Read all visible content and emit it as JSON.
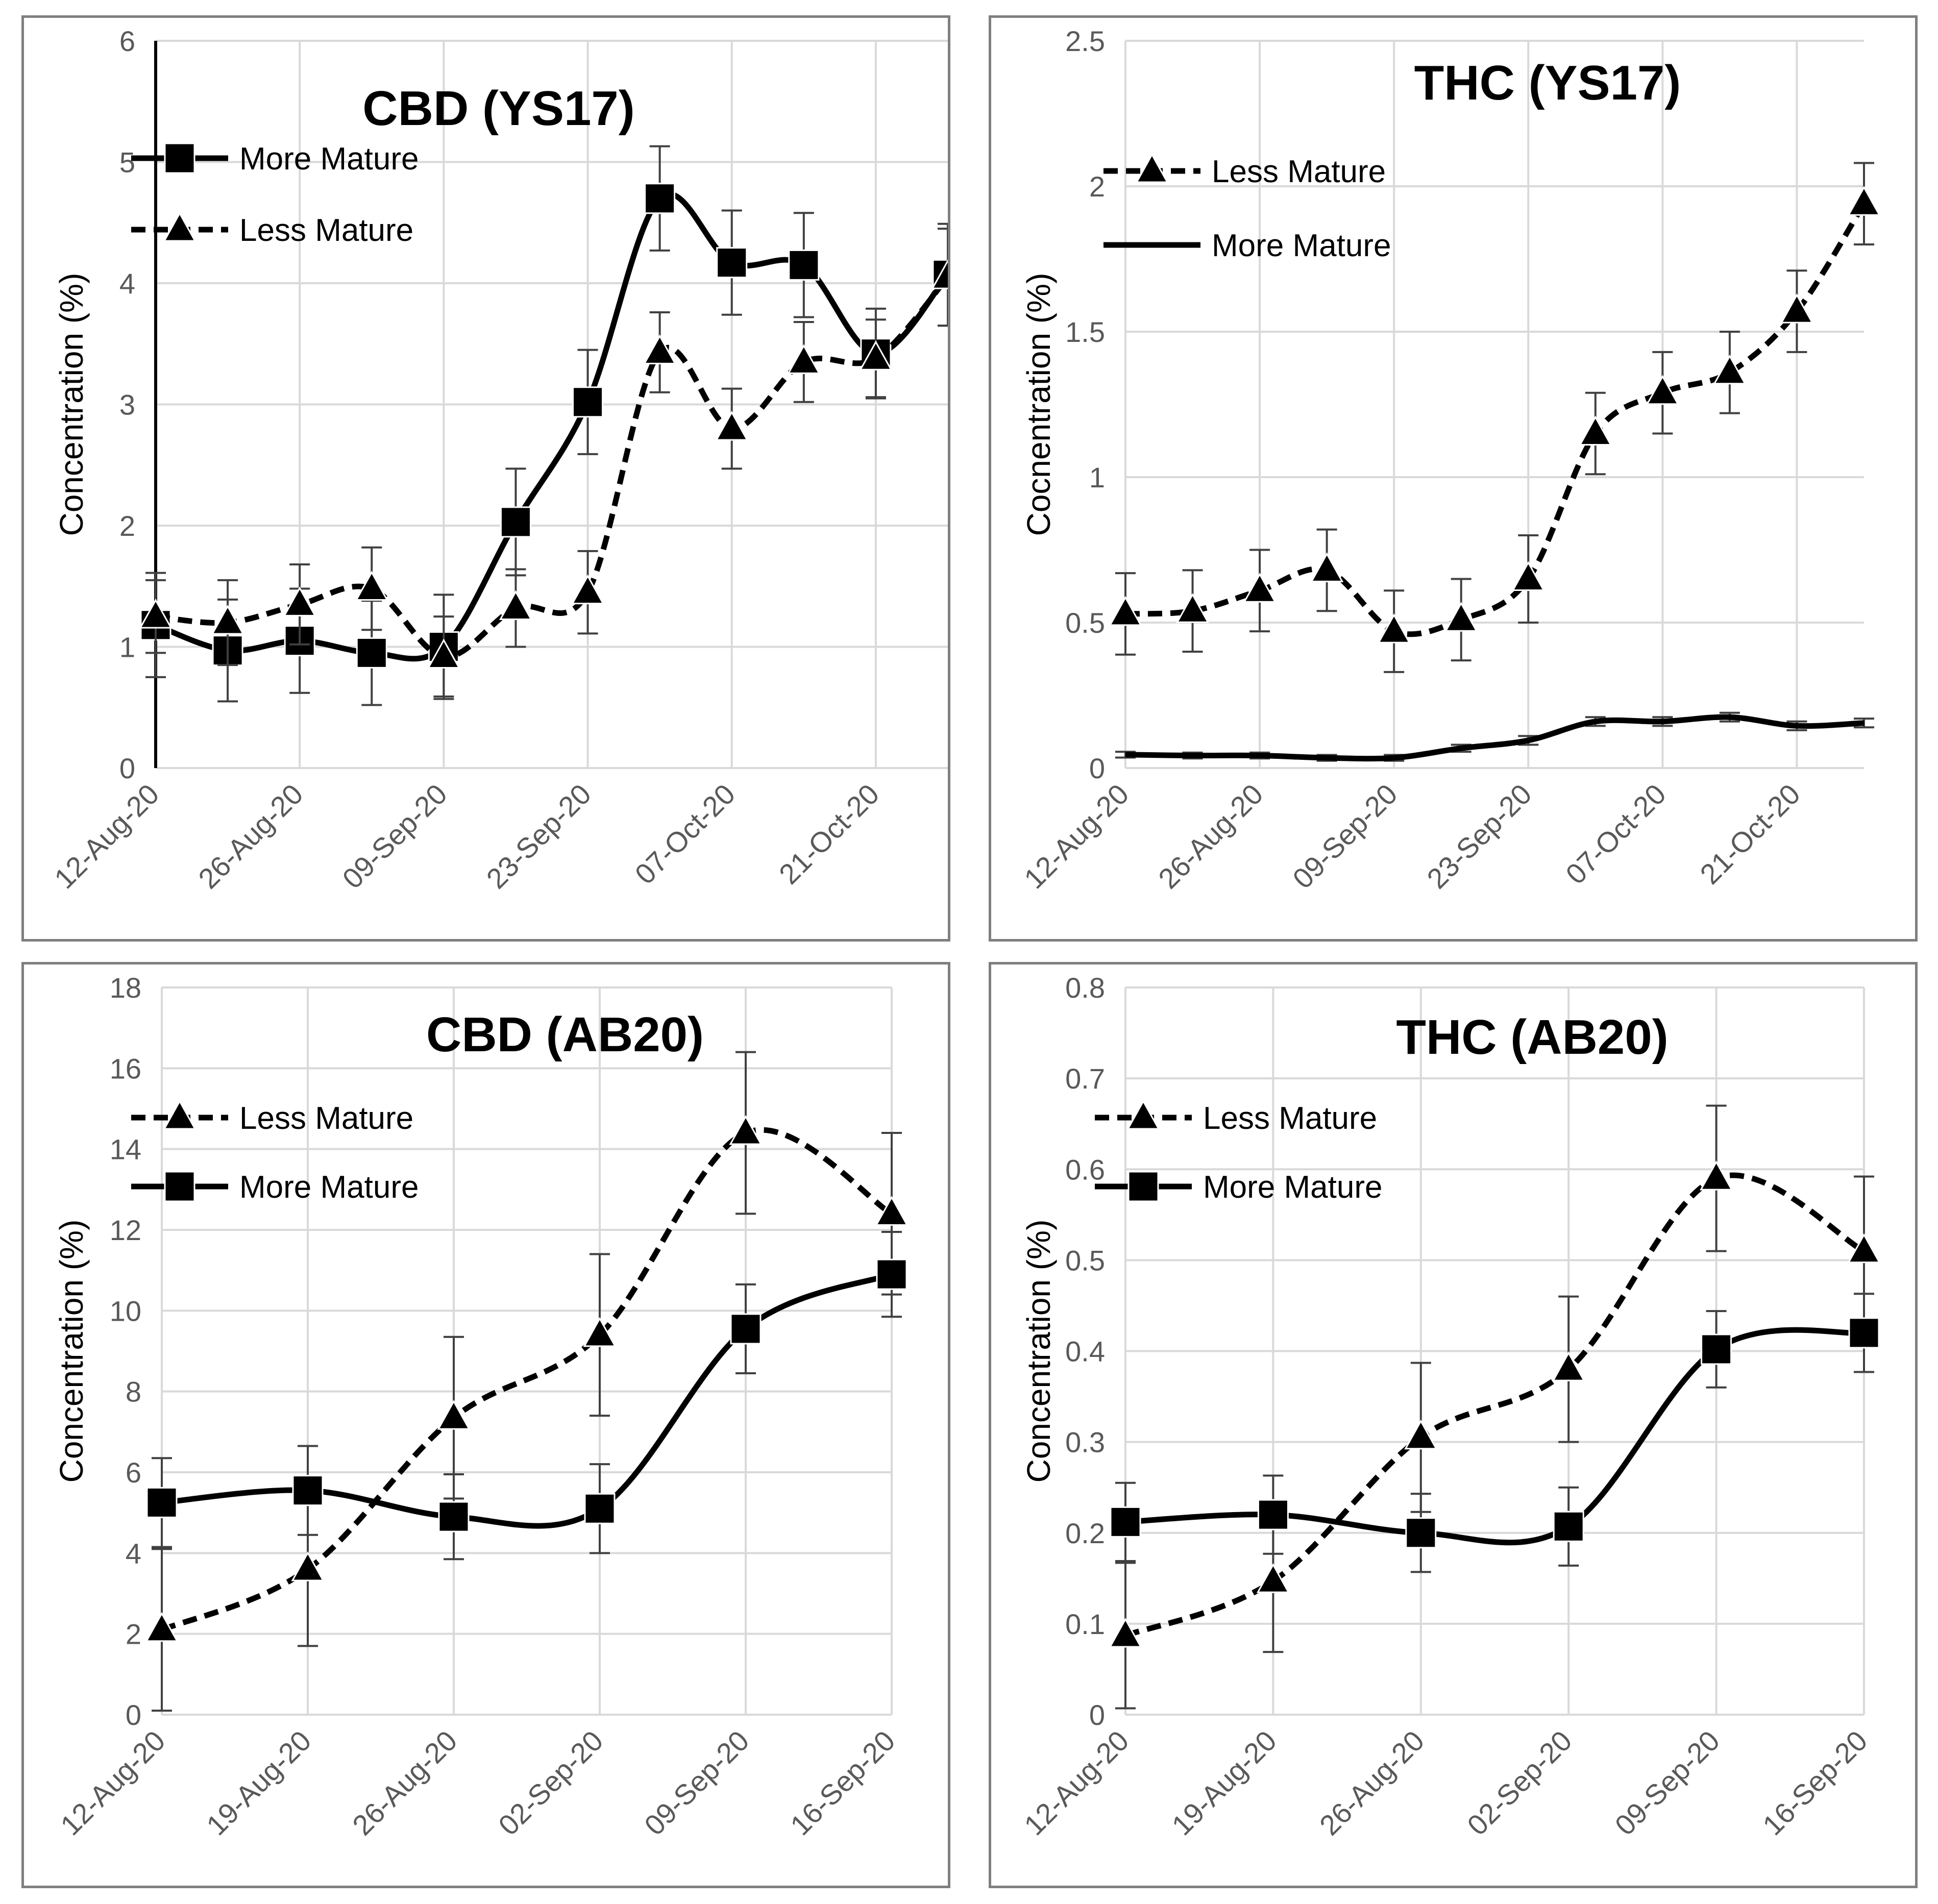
{
  "chart_data": [
    {
      "type": "line",
      "title": "CBD (YS17)",
      "xlabel": "",
      "ylabel": "Concentration (%)",
      "ylim": [
        0,
        6
      ],
      "yticks": [
        0,
        1,
        2,
        3,
        4,
        5,
        6
      ],
      "xtick_labels": [
        "12-Aug-20",
        "26-Aug-20",
        "09-Sep-20",
        "23-Sep-20",
        "07-Oct-20",
        "21-Oct-20"
      ],
      "x_days": [
        0,
        7,
        14,
        21,
        28,
        35,
        42,
        49,
        56,
        63,
        70,
        77
      ],
      "legend": "top-left",
      "series": [
        {
          "name": "More Mature",
          "style": "solid",
          "marker": "square",
          "values": [
            1.18,
            0.97,
            1.05,
            0.95,
            1.0,
            2.03,
            3.02,
            4.7,
            4.17,
            4.15,
            3.42,
            4.07
          ],
          "errors": [
            0.43,
            0.42,
            0.43,
            0.43,
            0.43,
            0.44,
            0.43,
            0.43,
            0.43,
            0.43,
            0.37,
            0.42
          ]
        },
        {
          "name": "Less Mature",
          "style": "dashed",
          "marker": "triangle",
          "values": [
            1.25,
            1.2,
            1.35,
            1.48,
            0.92,
            1.32,
            1.45,
            3.43,
            2.8,
            3.35,
            3.38,
            4.05
          ],
          "errors": [
            0.3,
            0.35,
            0.33,
            0.34,
            0.33,
            0.32,
            0.34,
            0.33,
            0.33,
            0.33,
            0.32,
            0.4
          ]
        }
      ]
    },
    {
      "type": "line",
      "title": "THC (YS17)",
      "xlabel": "",
      "ylabel": "Cocnentration (%)",
      "ylim": [
        0,
        2.5
      ],
      "yticks": [
        0,
        0.5,
        1,
        1.5,
        2,
        2.5
      ],
      "xtick_labels": [
        "12-Aug-20",
        "26-Aug-20",
        "09-Sep-20",
        "23-Sep-20",
        "07-Oct-20",
        "21-Oct-20"
      ],
      "x_days": [
        0,
        7,
        14,
        21,
        28,
        35,
        42,
        49,
        56,
        63,
        70,
        77
      ],
      "legend": "top-left",
      "series": [
        {
          "name": "Less Mature",
          "style": "dashed",
          "marker": "triangle",
          "values": [
            0.53,
            0.54,
            0.61,
            0.68,
            0.47,
            0.51,
            0.65,
            1.15,
            1.29,
            1.36,
            1.57,
            1.94
          ],
          "errors": [
            0.14,
            0.14,
            0.14,
            0.14,
            0.14,
            0.14,
            0.15,
            0.14,
            0.14,
            0.14,
            0.14,
            0.14
          ]
        },
        {
          "name": "More Mature",
          "style": "solid",
          "marker": "none",
          "values": [
            0.046,
            0.043,
            0.043,
            0.035,
            0.035,
            0.068,
            0.095,
            0.16,
            0.16,
            0.175,
            0.145,
            0.155
          ],
          "errors": [
            0.01,
            0.01,
            0.01,
            0.01,
            0.01,
            0.012,
            0.015,
            0.015,
            0.015,
            0.015,
            0.015,
            0.015
          ]
        }
      ]
    },
    {
      "type": "line",
      "title": "CBD (AB20)",
      "xlabel": "",
      "ylabel": "Concentration (%)",
      "ylim": [
        0,
        18
      ],
      "yticks": [
        0,
        2,
        4,
        6,
        8,
        10,
        12,
        14,
        16,
        18
      ],
      "xtick_labels": [
        "12-Aug-20",
        "19-Aug-20",
        "26-Aug-20",
        "02-Sep-20",
        "09-Sep-20",
        "16-Sep-20"
      ],
      "x_days": [
        0,
        7,
        14,
        21,
        28,
        35
      ],
      "legend": "top-left",
      "series": [
        {
          "name": "Less Mature",
          "style": "dashed",
          "marker": "triangle",
          "values": [
            2.1,
            3.6,
            7.35,
            9.4,
            14.4,
            12.4
          ],
          "errors": [
            2.0,
            1.9,
            2.0,
            2.0,
            2.0,
            2.0
          ]
        },
        {
          "name": "More Mature",
          "style": "solid",
          "marker": "square",
          "values": [
            5.25,
            5.55,
            4.9,
            5.1,
            9.55,
            10.9
          ],
          "errors": [
            1.1,
            1.1,
            1.05,
            1.1,
            1.1,
            1.05
          ]
        }
      ]
    },
    {
      "type": "line",
      "title": "THC (AB20)",
      "xlabel": "",
      "ylabel": "Concentration (%)",
      "ylim": [
        0,
        0.8
      ],
      "yticks": [
        0,
        0.1,
        0.2,
        0.3,
        0.4,
        0.5,
        0.6,
        0.7,
        0.8
      ],
      "xtick_labels": [
        "12-Aug-20",
        "19-Aug-20",
        "26-Aug-20",
        "02-Sep-20",
        "09-Sep-20",
        "16-Sep-20"
      ],
      "x_days": [
        0,
        7,
        14,
        21,
        28,
        35
      ],
      "legend": "top-left",
      "series": [
        {
          "name": "Less Mature",
          "style": "dashed",
          "marker": "triangle",
          "values": [
            0.087,
            0.147,
            0.305,
            0.38,
            0.59,
            0.51
          ],
          "errors": [
            0.08,
            0.078,
            0.082,
            0.08,
            0.08,
            0.082
          ]
        },
        {
          "name": "More Mature",
          "style": "solid",
          "marker": "square",
          "values": [
            0.212,
            0.22,
            0.2,
            0.207,
            0.402,
            0.42
          ],
          "errors": [
            0.043,
            0.043,
            0.043,
            0.043,
            0.042,
            0.043
          ]
        }
      ]
    }
  ]
}
